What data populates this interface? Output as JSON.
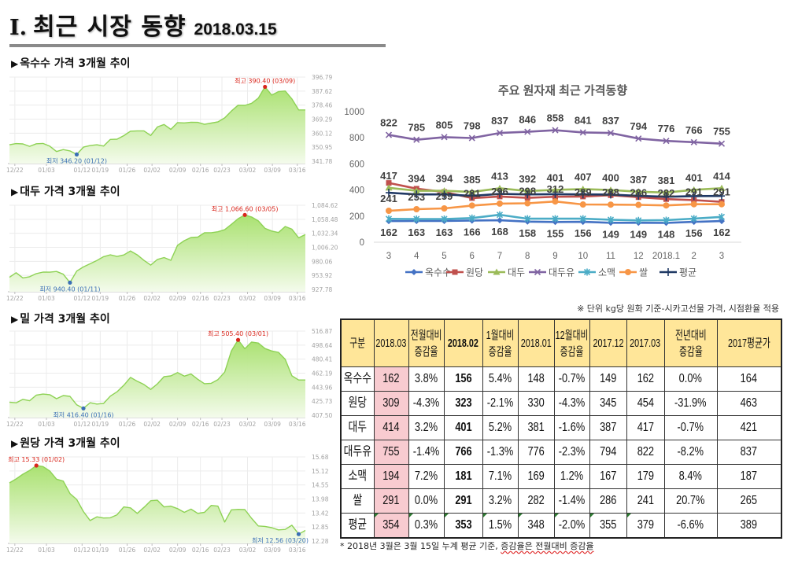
{
  "header": {
    "title_numeral": "I.",
    "title": "최근 시장 동향",
    "date": "2018.03.15"
  },
  "bullet_glyph": "▶",
  "chart_data": [
    {
      "type": "area",
      "title": "옥수수 가격 3개월 추이",
      "ylim": [
        341.78,
        396.79
      ],
      "y_ticks": [
        "396.79",
        "387.62",
        "378.46",
        "369.29",
        "360.12",
        "350.95",
        "341.78"
      ],
      "x_ticks": [
        {
          "label": "12/22",
          "at": 0.8
        },
        {
          "label": "01/03",
          "at": 5.5
        },
        {
          "label": "01/12",
          "at": 10.8
        },
        {
          "label": "01/19",
          "at": 13.5
        },
        {
          "label": "01/26",
          "at": 17.5
        },
        {
          "label": "02/02",
          "at": 21.2
        },
        {
          "label": "02/09",
          "at": 25.0
        },
        {
          "label": "02/16",
          "at": 28.4
        },
        {
          "label": "02/23",
          "at": 31.6
        },
        {
          "label": "03/02",
          "at": 35.4
        },
        {
          "label": "03/09",
          "at": 39.1
        },
        {
          "label": "03/16",
          "at": 42.8
        }
      ],
      "values": [
        352.5,
        353.3,
        353.1,
        351.5,
        353.2,
        353.4,
        351.6,
        348.1,
        349.4,
        348.5,
        346.2,
        351.0,
        352.0,
        352.5,
        351.7,
        356.0,
        356.2,
        358.5,
        361.4,
        361.6,
        361.6,
        358.6,
        364.2,
        365.8,
        362.6,
        367.0,
        366.8,
        367.3,
        367.2,
        365.9,
        366.7,
        367.5,
        370.1,
        374.6,
        378.4,
        378.3,
        379.6,
        383.0,
        390.4,
        385.0,
        387.3,
        387.7,
        382.5,
        375.3,
        375.3
      ],
      "high": {
        "index": 38,
        "label": "최고 390.40 (03/09)",
        "color": "#d9261c"
      },
      "low": {
        "index": 10,
        "label": "최저 346.20 (01/12)",
        "color": "#3a6fb5"
      },
      "line_color": "#8ed255",
      "fill_top": "#a6e06a",
      "fill_bottom": "#f4fbec"
    },
    {
      "type": "area",
      "title": "대두 가격 3개월 추이",
      "ylim": [
        927.78,
        1084.62
      ],
      "y_ticks": [
        "1,084.62",
        "1,058.48",
        "1,032.34",
        "1,006.20",
        "980.06",
        "953.92",
        "927.78"
      ],
      "x_ticks": [
        {
          "label": "12/22",
          "at": 0.8
        },
        {
          "label": "01/03",
          "at": 5.5
        },
        {
          "label": "01/12",
          "at": 10.8
        },
        {
          "label": "01/19",
          "at": 13.5
        },
        {
          "label": "01/26",
          "at": 17.5
        },
        {
          "label": "02/02",
          "at": 21.2
        },
        {
          "label": "02/09",
          "at": 25.0
        },
        {
          "label": "02/16",
          "at": 28.4
        },
        {
          "label": "02/23",
          "at": 31.6
        },
        {
          "label": "03/02",
          "at": 35.4
        },
        {
          "label": "03/09",
          "at": 39.1
        },
        {
          "label": "03/16",
          "at": 42.8
        }
      ],
      "values": [
        950.3,
        958.8,
        949.2,
        951.4,
        957.2,
        960.1,
        959.9,
        961.2,
        956.0,
        940.4,
        962.0,
        969.7,
        975.5,
        981.7,
        988.7,
        992.3,
        989.2,
        992.0,
        999.5,
        992.2,
        981.9,
        973.0,
        983.7,
        987.2,
        982.0,
        1010.0,
        1018.7,
        1024.5,
        1025.3,
        1033.3,
        1033.5,
        1035.2,
        1039.0,
        1049.0,
        1059.5,
        1066.6,
        1062.8,
        1055.5,
        1041.5,
        1036.5,
        1033.8,
        1045.0,
        1040.0,
        1024.0,
        1029.9
      ],
      "high": {
        "index": 35,
        "label": "최고 1,066.60 (03/05)",
        "color": "#d9261c"
      },
      "low": {
        "index": 9,
        "label": "최저 940.40 (01/11)",
        "color": "#3a6fb5"
      },
      "line_color": "#8ed255",
      "fill_top": "#a6e06a",
      "fill_bottom": "#f4fbec"
    },
    {
      "type": "area",
      "title": "밀 가격 3개월 추이",
      "ylim": [
        407.5,
        516.87
      ],
      "y_ticks": [
        "516.87",
        "498.64",
        "480.41",
        "462.19",
        "443.96",
        "425.73",
        "407.50"
      ],
      "x_ticks": [
        {
          "label": "12/22",
          "at": 0.8
        },
        {
          "label": "01/03",
          "at": 5.5
        },
        {
          "label": "01/12",
          "at": 10.8
        },
        {
          "label": "01/19",
          "at": 13.5
        },
        {
          "label": "01/26",
          "at": 17.5
        },
        {
          "label": "02/02",
          "at": 21.2
        },
        {
          "label": "02/09",
          "at": 25.0
        },
        {
          "label": "02/16",
          "at": 28.4
        },
        {
          "label": "02/23",
          "at": 31.6
        },
        {
          "label": "03/02",
          "at": 35.4
        },
        {
          "label": "03/09",
          "at": 39.1
        },
        {
          "label": "03/16",
          "at": 42.8
        }
      ],
      "values": [
        424.5,
        423.7,
        428.1,
        426.3,
        433.7,
        435.0,
        434.2,
        429.0,
        433.1,
        432.0,
        421.0,
        416.4,
        423.8,
        422.0,
        422.8,
        432.3,
        438.0,
        446.4,
        456.7,
        451.7,
        447.5,
        441.0,
        448.3,
        457.7,
        458.6,
        462.9,
        458.3,
        461.1,
        454.2,
        448.5,
        449.0,
        453.8,
        463.5,
        491.1,
        505.4,
        494.0,
        502.6,
        501.3,
        494.2,
        491.0,
        489.3,
        480.2,
        458.7,
        453.3,
        453.3
      ],
      "high": {
        "index": 34,
        "label": "최고 505.40 (03/01)",
        "color": "#d9261c"
      },
      "low": {
        "index": 11,
        "label": "최저 416.40 (01/16)",
        "color": "#3a6fb5"
      },
      "line_color": "#8ed255",
      "fill_top": "#a6e06a",
      "fill_bottom": "#f4fbec"
    },
    {
      "type": "area",
      "title": "원당 가격 3개월 추이",
      "ylim": [
        12.28,
        15.68
      ],
      "y_ticks": [
        "15.68",
        "15.12",
        "14.55",
        "13.98",
        "13.42",
        "12.85",
        "12.28"
      ],
      "x_ticks": [
        {
          "label": "12/22",
          "at": 0.8
        },
        {
          "label": "01/03",
          "at": 5.5
        },
        {
          "label": "01/12",
          "at": 10.8
        },
        {
          "label": "01/19",
          "at": 13.5
        },
        {
          "label": "01/26",
          "at": 17.5
        },
        {
          "label": "02/02",
          "at": 21.2
        },
        {
          "label": "02/09",
          "at": 25.0
        },
        {
          "label": "02/16",
          "at": 28.4
        },
        {
          "label": "02/23",
          "at": 31.6
        },
        {
          "label": "03/02",
          "at": 35.4
        },
        {
          "label": "03/09",
          "at": 39.1
        },
        {
          "label": "03/16",
          "at": 42.8
        }
      ],
      "values": [
        14.63,
        14.79,
        14.98,
        15.13,
        15.33,
        15.29,
        15.11,
        14.78,
        14.7,
        14.2,
        13.96,
        13.47,
        13.11,
        13.26,
        13.21,
        13.22,
        13.34,
        13.66,
        13.62,
        13.4,
        13.64,
        13.91,
        13.93,
        13.66,
        13.69,
        13.59,
        13.44,
        13.57,
        13.4,
        13.44,
        13.72,
        13.69,
        13.05,
        13.54,
        13.56,
        13.55,
        13.2,
        12.89,
        12.87,
        12.82,
        12.73,
        12.75,
        12.92,
        12.56,
        12.71
      ],
      "high": {
        "index": 4,
        "label": "최고 15.33 (01/02)",
        "color": "#d9261c"
      },
      "low": {
        "index": 43,
        "label": "최저 12.56 (03/20)",
        "color": "#3a6fb5"
      },
      "line_color": "#8ed255",
      "fill_top": "#a6e06a",
      "fill_bottom": "#f4fbec"
    },
    {
      "type": "line",
      "title": "주요 원자재 최근 가격동향",
      "categories": [
        "3",
        "4",
        "5",
        "6",
        "7",
        "8",
        "9",
        "10",
        "11",
        "12",
        "2018.1",
        "2",
        "3"
      ],
      "xlabel": "",
      "ylabel": "",
      "ylim": [
        0,
        1000
      ],
      "y_ticks": [
        0,
        200,
        400,
        600,
        800,
        1000
      ],
      "grid": false,
      "legend": "bottom",
      "series": [
        {
          "name": "옥수수",
          "color": "#4472c4",
          "marker": "diamond",
          "label_position": "below",
          "values": [
            162,
            163,
            163,
            166,
            168,
            158,
            155,
            156,
            149,
            149,
            148,
            156,
            162
          ]
        },
        {
          "name": "원당",
          "color": "#c0504d",
          "marker": "square",
          "values": [
            454,
            410,
            385,
            338,
            350,
            340,
            348,
            350,
            360,
            345,
            330,
            323,
            309
          ]
        },
        {
          "name": "대두",
          "color": "#9bbb59",
          "marker": "triangle",
          "label_position": "above",
          "values": [
            417,
            394,
            394,
            385,
            413,
            392,
            401,
            407,
            400,
            387,
            381,
            401,
            414
          ]
        },
        {
          "name": "대두유",
          "color": "#8064a2",
          "marker": "x",
          "label_position": "above",
          "values": [
            822,
            785,
            805,
            798,
            837,
            846,
            858,
            841,
            837,
            794,
            776,
            766,
            755
          ]
        },
        {
          "name": "소맥",
          "color": "#4bacc6",
          "marker": "star",
          "values": [
            179,
            178,
            178,
            185,
            210,
            180,
            180,
            180,
            172,
            167,
            169,
            181,
            194
          ]
        },
        {
          "name": "쌀",
          "color": "#f79646",
          "marker": "circle",
          "label_position": "above",
          "values": [
            241,
            253,
            259,
            281,
            296,
            298,
            312,
            289,
            288,
            286,
            282,
            291,
            291
          ]
        },
        {
          "name": "평균",
          "color": "#1f3864",
          "marker": "plus",
          "values": [
            379,
            366,
            366,
            355,
            370,
            366,
            368,
            366,
            365,
            355,
            348,
            353,
            354
          ]
        }
      ]
    }
  ],
  "unit_note": "※ 단위 kg당 원화 기준-시카고선물 가격, 시점환율 적용",
  "table": {
    "headers": [
      "구분",
      "2018.03",
      "전월대비\n증감율",
      "2018.02",
      "1월대비\n증감율",
      "2018.01",
      "12월대비\n증감율",
      "2017.12",
      "2017.03",
      "전년대비\n증감율",
      "2017평균가"
    ],
    "rows": [
      {
        "name": "옥수수",
        "values": [
          "162",
          "3.8%",
          "156",
          "5.4%",
          "148",
          "-0.7%",
          "149",
          "162",
          "0.0%",
          "164"
        ]
      },
      {
        "name": "원당",
        "values": [
          "309",
          "-4.3%",
          "323",
          "-2.1%",
          "330",
          "-4.3%",
          "345",
          "454",
          "-31.9%",
          "463"
        ]
      },
      {
        "name": "대두",
        "values": [
          "414",
          "3.2%",
          "401",
          "5.2%",
          "381",
          "-1.6%",
          "387",
          "417",
          "-0.7%",
          "421"
        ]
      },
      {
        "name": "대두유",
        "values": [
          "755",
          "-1.4%",
          "766",
          "-1.3%",
          "776",
          "-2.3%",
          "794",
          "822",
          "-8.2%",
          "837"
        ]
      },
      {
        "name": "소맥",
        "values": [
          "194",
          "7.2%",
          "181",
          "7.1%",
          "169",
          "1.2%",
          "167",
          "179",
          "8.4%",
          "187"
        ]
      },
      {
        "name": "쌀",
        "values": [
          "291",
          "0.0%",
          "291",
          "3.2%",
          "282",
          "-1.4%",
          "286",
          "241",
          "20.7%",
          "265"
        ]
      },
      {
        "name": "평균",
        "values": [
          "354",
          "0.3%",
          "353",
          "1.5%",
          "348",
          "-2.0%",
          "355",
          "379",
          "-6.6%",
          "389"
        ]
      }
    ]
  },
  "footnote": {
    "pref": "* 2018년 3월은 3월 15일 누계 평균 기준, ",
    "underlined": "증감율은 전월대비 증감율"
  }
}
